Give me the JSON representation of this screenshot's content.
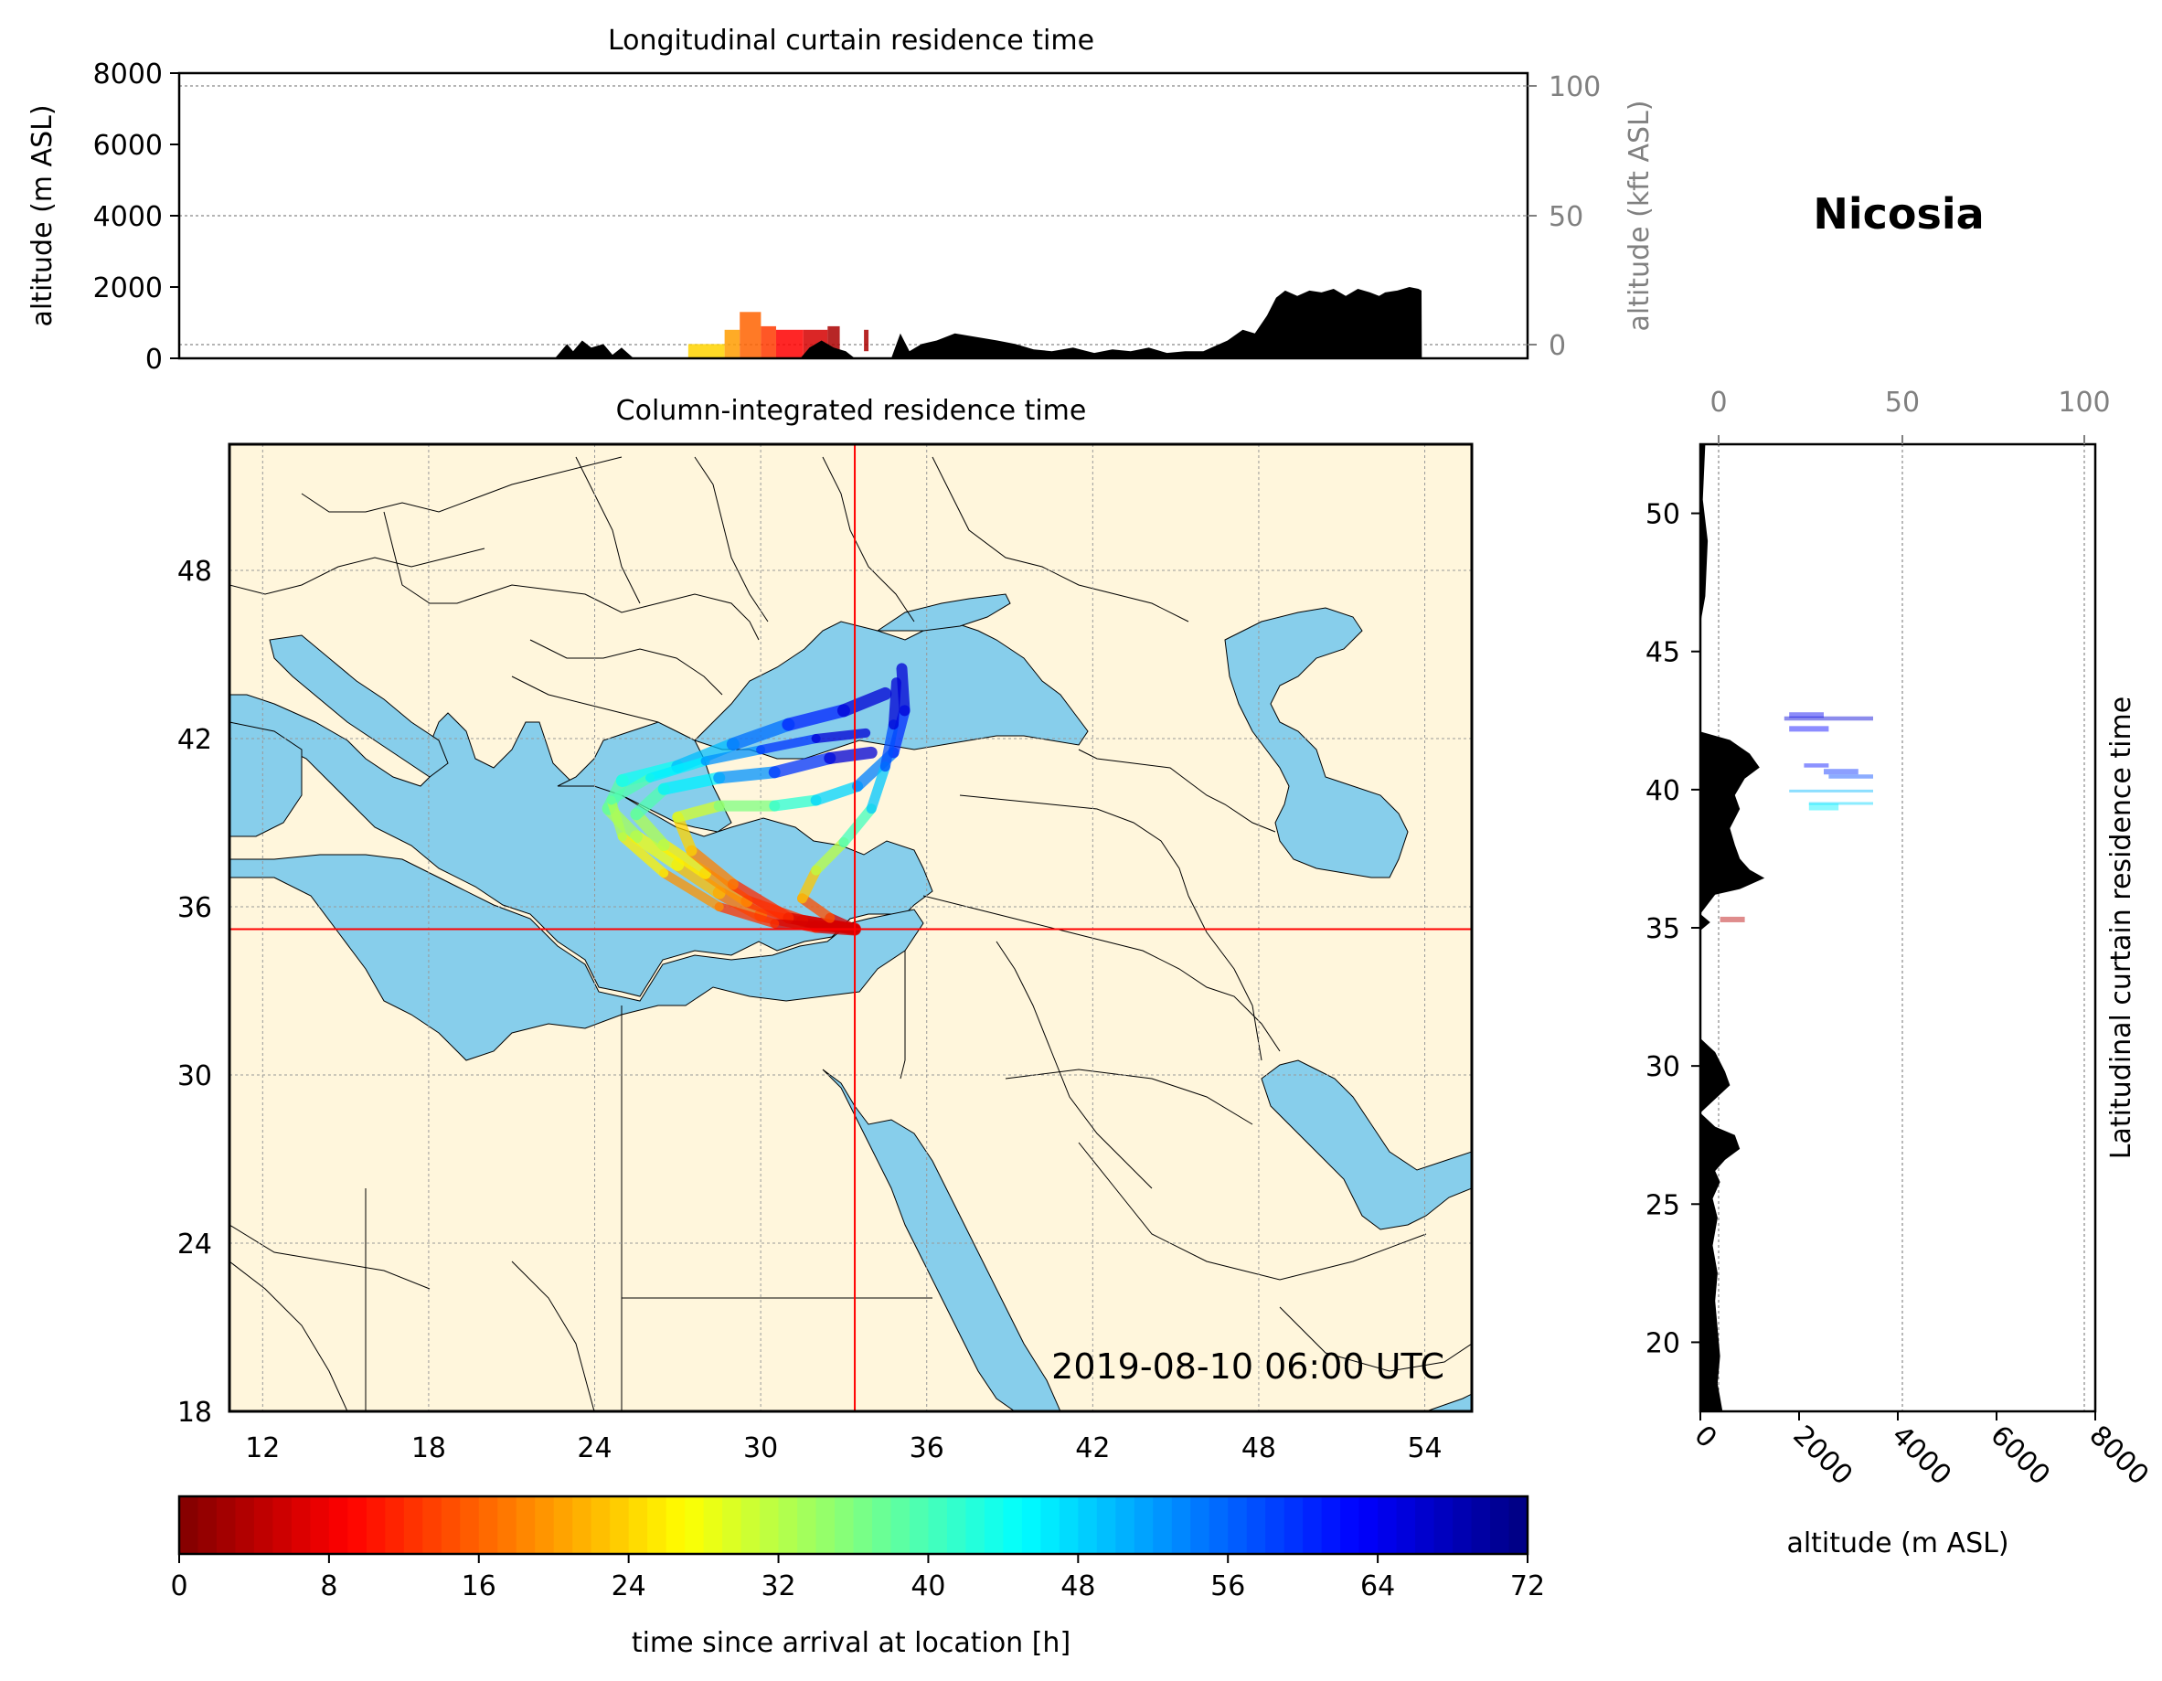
{
  "site_name": "Nicosia",
  "timestamp": "2019-08-10 06:00 UTC",
  "colors": {
    "sea": "#87ceeb",
    "land": "#fff6dc",
    "terrain": "#000000",
    "crosshair": "#ff0000",
    "secondary_axis": "#808080"
  },
  "colormap": "jet_r",
  "chart_data": [
    {
      "id": "longitudinal",
      "type": "area",
      "title": "Longitudinal curtain residence time",
      "ylabel": "altitude (m ASL)",
      "ylabel_right": "altitude (kft ASL)",
      "ylim": [
        0,
        8000
      ],
      "yticks": [
        "0",
        "2000",
        "4000",
        "6000",
        "8000"
      ],
      "right_ticks": [
        "0",
        "50",
        "100"
      ],
      "xlim": [
        11,
        55.5
      ],
      "terrain": {
        "x": [
          11,
          23.4,
          23.8,
          24,
          24.3,
          24.6,
          25,
          25.3,
          25.6,
          26,
          31.5,
          31.8,
          32.2,
          32.6,
          33,
          33.3,
          34.5,
          34.8,
          35.1,
          35.5,
          36,
          36.6,
          37.3,
          38,
          38.6,
          39.2,
          39.8,
          40.5,
          41.2,
          41.8,
          42.4,
          43,
          43.6,
          44.2,
          44.8,
          45.6,
          46.1,
          46.5,
          46.9,
          47.2,
          47.5,
          47.9,
          48.3,
          48.7,
          49.1,
          49.5,
          49.9,
          50.3,
          50.6,
          50.8,
          51.2,
          51.6,
          51.9,
          52,
          52.01,
          55.5
        ],
        "y": [
          0,
          0,
          400,
          200,
          500,
          300,
          400,
          100,
          300,
          0,
          0,
          300,
          500,
          300,
          200,
          0,
          0,
          700,
          200,
          400,
          500,
          700,
          600,
          500,
          400,
          250,
          200,
          300,
          150,
          250,
          200,
          300,
          150,
          200,
          200,
          500,
          800,
          700,
          1200,
          1700,
          1900,
          1750,
          1900,
          1850,
          1950,
          1750,
          1950,
          1850,
          1750,
          1850,
          1900,
          2000,
          1950,
          1900,
          0,
          0
        ]
      },
      "residence": [
        {
          "x": [
            27.8,
            29
          ],
          "alt": [
            0,
            400
          ],
          "t": 24
        },
        {
          "x": [
            29,
            29.5
          ],
          "alt": [
            0,
            800
          ],
          "t": 20
        },
        {
          "x": [
            29.5,
            30.2
          ],
          "alt": [
            0,
            1300
          ],
          "t": 16
        },
        {
          "x": [
            30.2,
            30.7
          ],
          "alt": [
            0,
            900
          ],
          "t": 13
        },
        {
          "x": [
            30.7,
            31.6
          ],
          "alt": [
            0,
            800
          ],
          "t": 9
        },
        {
          "x": [
            31.6,
            32.4
          ],
          "alt": [
            0,
            800
          ],
          "t": 6
        },
        {
          "x": [
            32.4,
            32.8
          ],
          "alt": [
            0,
            900
          ],
          "t": 3
        },
        {
          "x": [
            33.6,
            33.75
          ],
          "alt": [
            200,
            800
          ],
          "t": 3
        }
      ]
    },
    {
      "id": "map",
      "type": "heatmap",
      "title": "Column-integrated residence time",
      "xlim": [
        10.8,
        55.7
      ],
      "ylim": [
        18,
        52.5
      ],
      "xticks": [
        "12",
        "18",
        "24",
        "30",
        "36",
        "42",
        "48",
        "54"
      ],
      "yticks": [
        "18",
        "24",
        "30",
        "36",
        "42",
        "48"
      ],
      "site": {
        "lon": 33.4,
        "lat": 35.2
      }
    },
    {
      "id": "latitudinal",
      "type": "area",
      "title": "Latitudinal curtain residence time",
      "xlabel": "altitude (m ASL)",
      "xlim": [
        0,
        8000
      ],
      "xticks": [
        "0",
        "2000",
        "4000",
        "6000",
        "8000"
      ],
      "top_ticks": [
        "0",
        "50",
        "100"
      ],
      "ylim": [
        17.5,
        52.5
      ],
      "yticks": [
        "20",
        "25",
        "30",
        "35",
        "40",
        "45",
        "50"
      ],
      "terrain": {
        "lat": [
          52.5,
          50.5,
          49,
          47,
          46,
          43.5,
          42.1,
          41.8,
          41.3,
          40.8,
          40.4,
          39.8,
          39.3,
          38.6,
          38,
          37.5,
          37.1,
          36.8,
          36.4,
          36.2,
          35.5,
          35.2,
          34.9,
          33,
          31,
          30.5,
          29.8,
          29.3,
          28.8,
          28.3,
          27.8,
          27.5,
          27,
          26.6,
          26.2,
          25.8,
          25.2,
          24.5,
          23.5,
          22.5,
          21.5,
          20.5,
          19.5,
          18.5,
          17.5
        ],
        "alt": [
          100,
          50,
          150,
          100,
          0,
          0,
          0,
          600,
          1000,
          1200,
          900,
          700,
          800,
          600,
          700,
          800,
          1000,
          1300,
          800,
          300,
          0,
          200,
          0,
          0,
          0,
          300,
          500,
          600,
          300,
          0,
          300,
          700,
          800,
          500,
          300,
          400,
          250,
          350,
          250,
          350,
          300,
          350,
          400,
          350,
          450
        ]
      },
      "residence": [
        {
          "alt": [
            1800,
            2500
          ],
          "lat": [
            42.6,
            42.8
          ],
          "t": 64
        },
        {
          "alt": [
            1700,
            3500
          ],
          "lat": [
            42.5,
            42.65
          ],
          "t": 66
        },
        {
          "alt": [
            1800,
            2600
          ],
          "lat": [
            42.1,
            42.3
          ],
          "t": 63
        },
        {
          "alt": [
            2100,
            2600
          ],
          "lat": [
            40.8,
            40.95
          ],
          "t": 62
        },
        {
          "alt": [
            2500,
            3200
          ],
          "lat": [
            40.55,
            40.75
          ],
          "t": 60
        },
        {
          "alt": [
            2600,
            3500
          ],
          "lat": [
            40.4,
            40.55
          ],
          "t": 58
        },
        {
          "alt": [
            1800,
            3500
          ],
          "lat": [
            39.9,
            40.0
          ],
          "t": 50
        },
        {
          "alt": [
            2200,
            3500
          ],
          "lat": [
            39.45,
            39.55
          ],
          "t": 48
        },
        {
          "alt": [
            2200,
            2800
          ],
          "lat": [
            39.25,
            39.5
          ],
          "t": 46
        },
        {
          "alt": [
            400,
            900
          ],
          "lat": [
            35.2,
            35.4
          ],
          "t": 4
        }
      ]
    },
    {
      "id": "colorbar",
      "type": "heatmap",
      "label": "time since arrival at location [h]",
      "range": [
        0,
        72
      ],
      "ticks": [
        "0",
        "8",
        "16",
        "24",
        "32",
        "40",
        "48",
        "56",
        "64",
        "72"
      ]
    }
  ]
}
